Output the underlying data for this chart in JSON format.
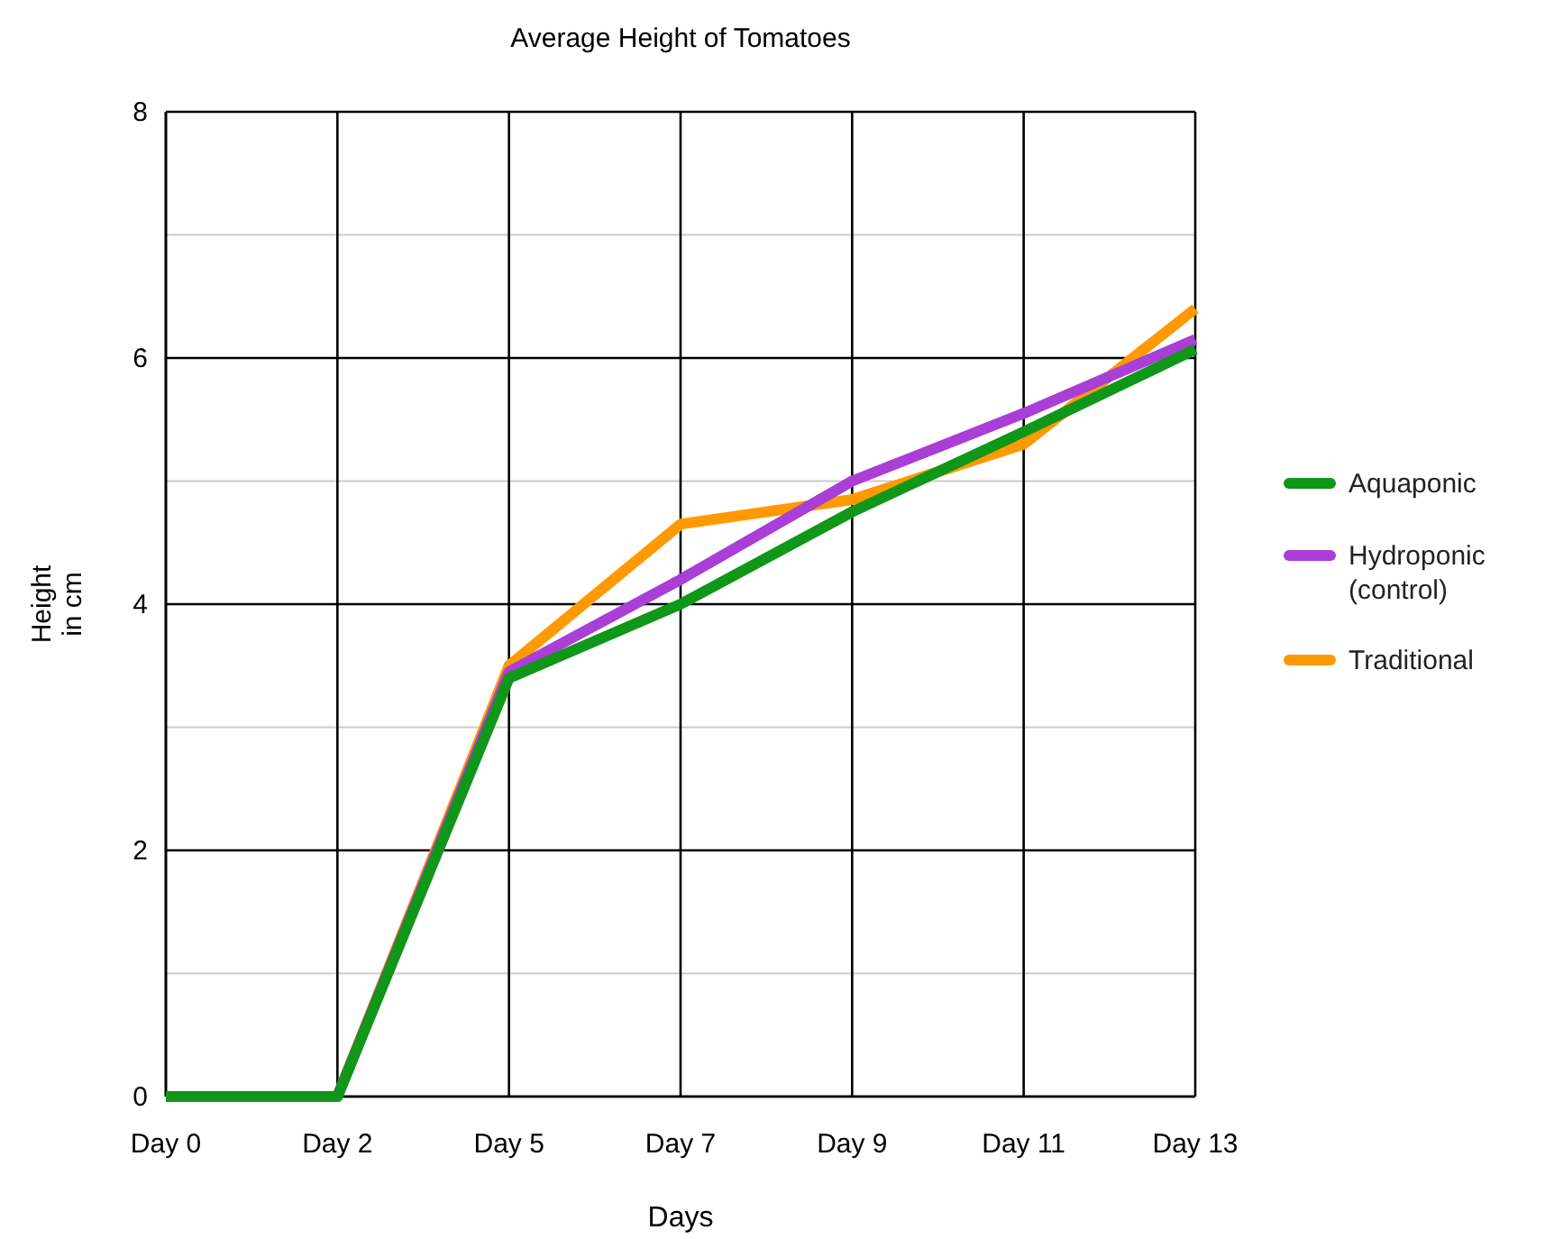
{
  "chart_data": {
    "type": "line",
    "title": "Average Height of Tomatoes",
    "xlabel": "Days",
    "ylabel": "Height in cm",
    "categories": [
      "Day 0",
      "Day 2",
      "Day 5",
      "Day 7",
      "Day 9",
      "Day 11",
      "Day 13"
    ],
    "ylim": [
      0,
      8
    ],
    "yticks": [
      0,
      {
        "value": 1,
        "label": null
      },
      2,
      {
        "value": 3,
        "label": null
      },
      4,
      {
        "value": 5,
        "label": null
      },
      6,
      {
        "value": 7,
        "label": null
      },
      8
    ],
    "grid": true,
    "legend": "right",
    "marker": "none",
    "line_style": "solid",
    "series": [
      {
        "name": "Aquaponic",
        "color": "#109618",
        "values": [
          0,
          0,
          3.4,
          4.0,
          4.75,
          5.4,
          6.07
        ]
      },
      {
        "name": "Hydroponic (control)",
        "color": "#a93fd6",
        "values": [
          0,
          0,
          3.45,
          4.2,
          5.0,
          5.55,
          6.15
        ]
      },
      {
        "name": "Traditional",
        "color": "#ff9900",
        "values": [
          0,
          0,
          3.5,
          4.65,
          4.85,
          5.3,
          6.4
        ]
      }
    ]
  }
}
